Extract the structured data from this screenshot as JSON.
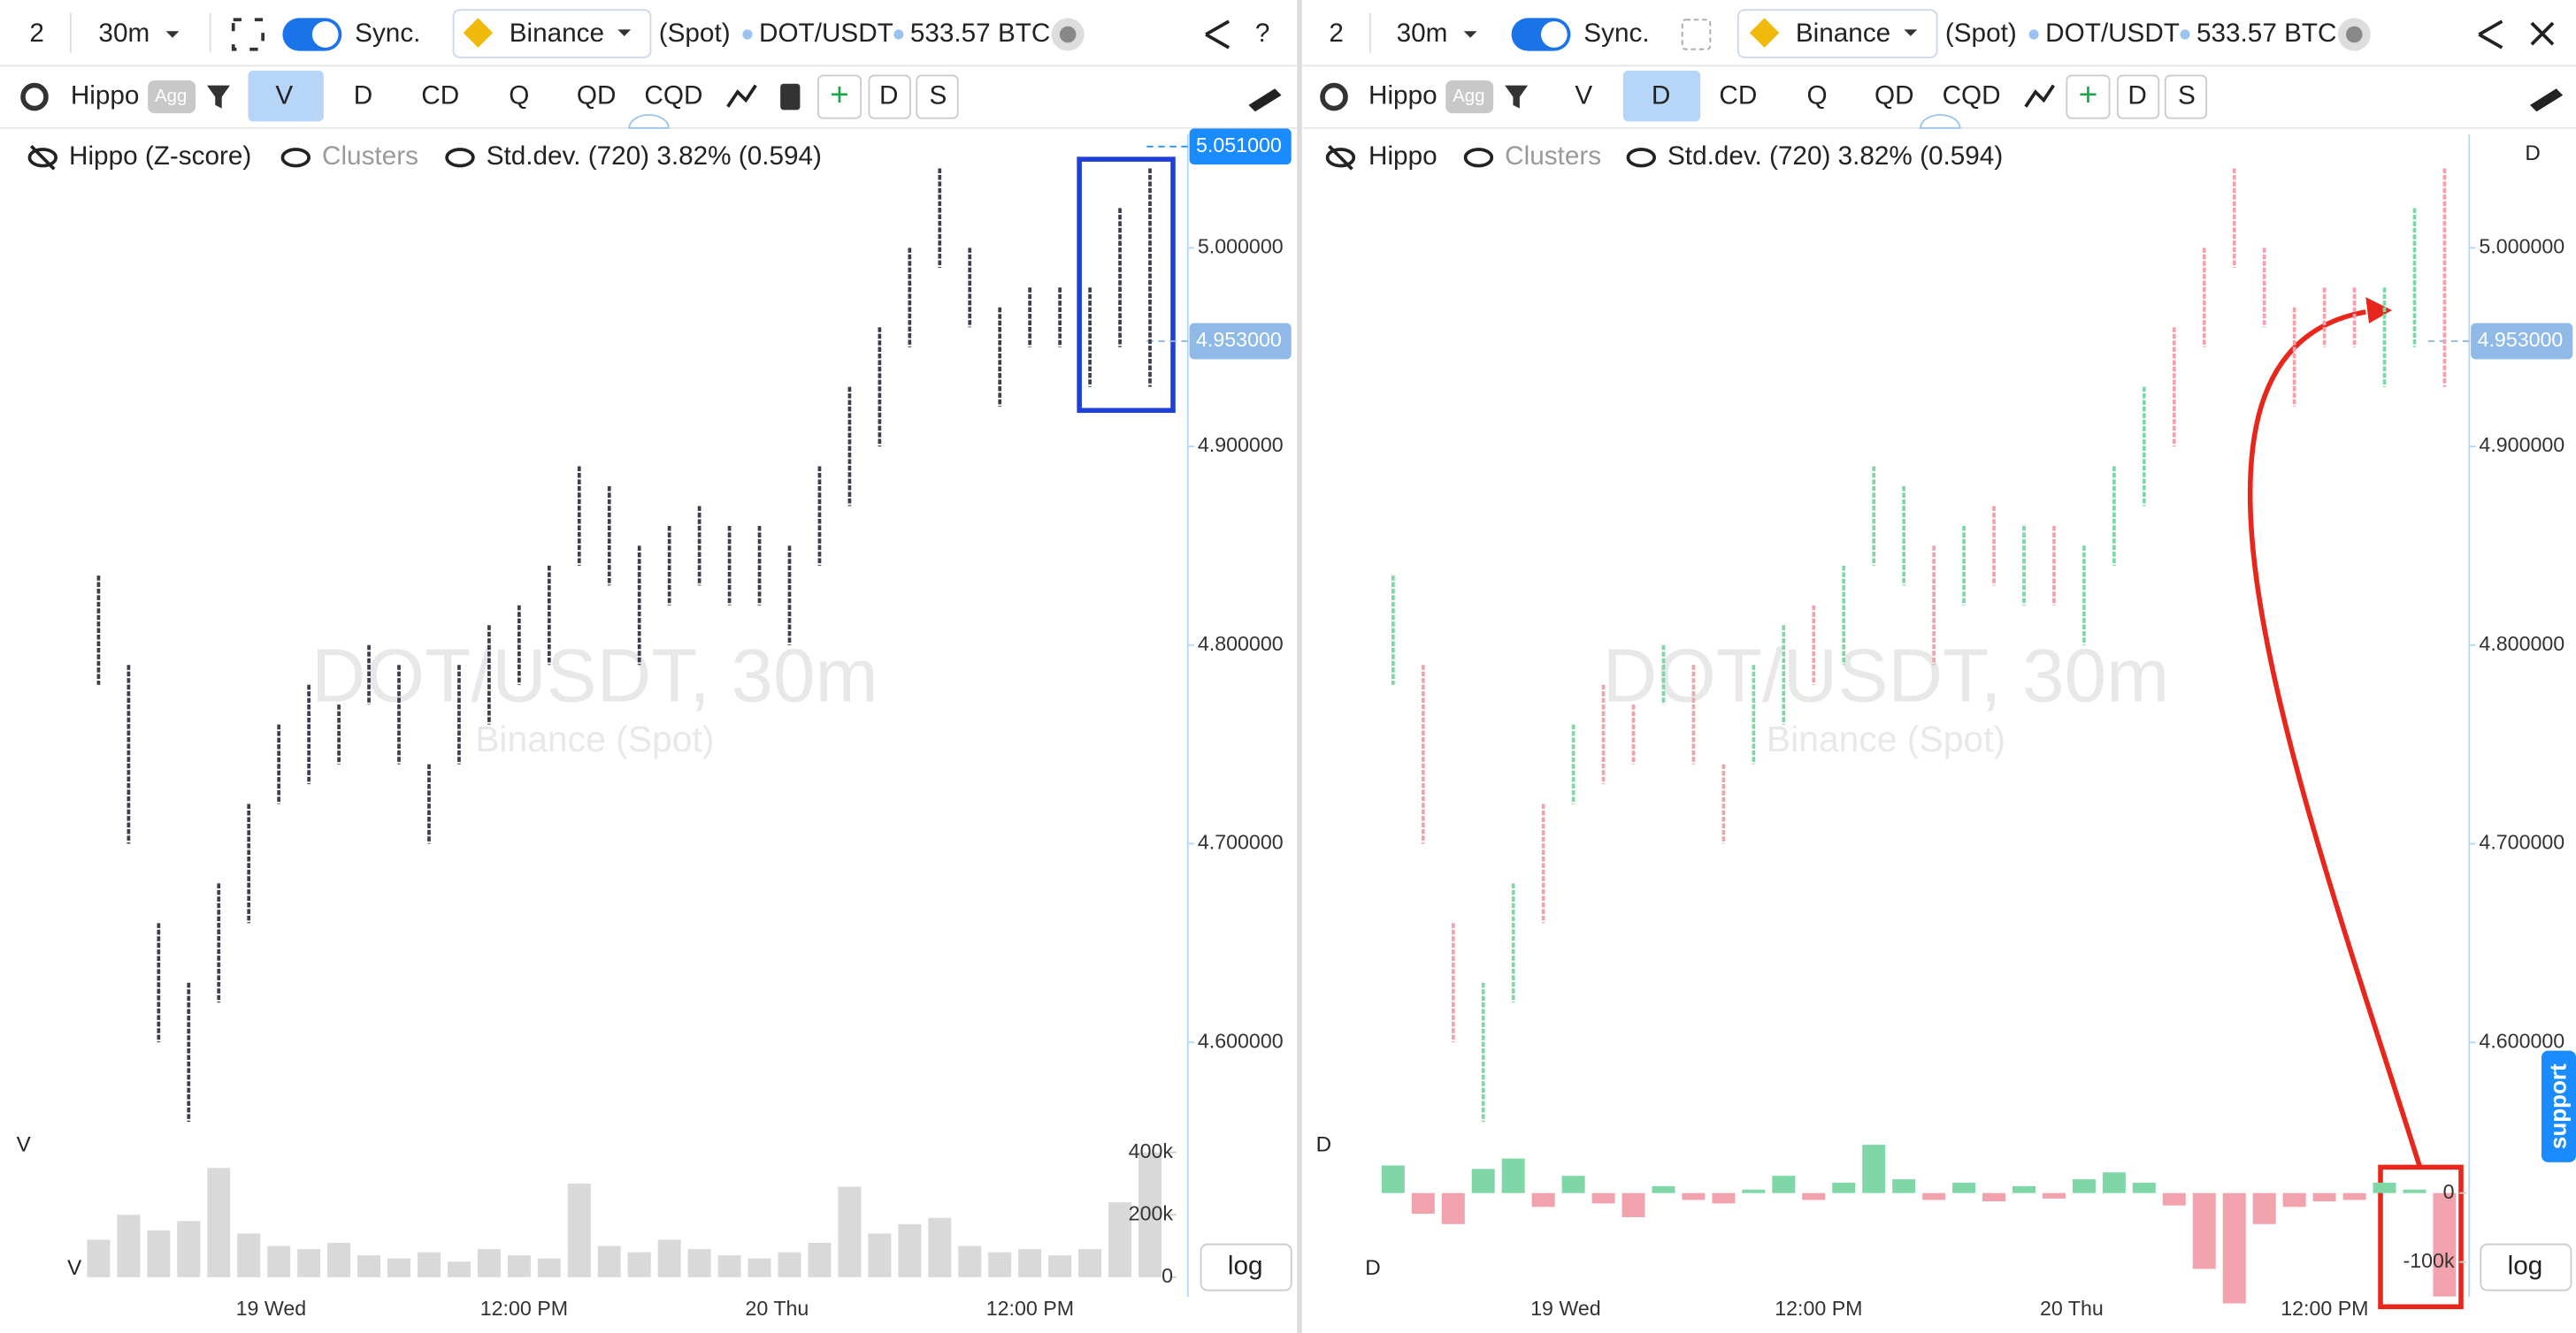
{
  "left_panel": {
    "toolbar": {
      "layout": "2",
      "interval": "30m",
      "sync": "Sync.",
      "exchange": "Binance",
      "market": "(Spot)",
      "pair": "DOT/USDT",
      "volume": "533.57 BTC",
      "help": "?"
    },
    "indicators": {
      "name": "Hippo",
      "agg": "Agg",
      "tabs": [
        "V",
        "D",
        "CD",
        "Q",
        "QD",
        "CQD"
      ],
      "add": "+",
      "d": "D",
      "s": "S"
    },
    "legend": {
      "hippo": "Hippo (Z-score)",
      "clusters": "Clusters",
      "stddev": "Std.dev. (720) 3.82% (0.594)"
    },
    "watermark": {
      "symbol": "DOT/USDT, 30m",
      "source": "Binance (Spot)"
    },
    "pane_labels": [
      "V",
      "V"
    ],
    "log": "log"
  },
  "right_panel": {
    "toolbar": {
      "layout": "2",
      "interval": "30m",
      "sync": "Sync.",
      "exchange": "Binance",
      "market": "(Spot)",
      "pair": "DOT/USDT",
      "volume": "533.57 BTC"
    },
    "indicators": {
      "name": "Hippo",
      "agg": "Agg",
      "tabs": [
        "V",
        "D",
        "CD",
        "Q",
        "QD",
        "CQD"
      ],
      "add": "+",
      "d": "D",
      "s": "S"
    },
    "legend": {
      "hippo": "Hippo",
      "clusters": "Clusters",
      "stddev": "Std.dev. (720) 3.82% (0.594)"
    },
    "watermark": {
      "symbol": "DOT/USDT, 30m",
      "source": "Binance (Spot)"
    },
    "pane_labels": [
      "D",
      "D",
      "D"
    ],
    "log": "log",
    "support": "support"
  },
  "chart_data": [
    {
      "type": "candlestick",
      "color": "#3a3f4b",
      "high": [
        4.835,
        4.79,
        4.66,
        4.63,
        4.68,
        4.72,
        4.76,
        4.78,
        4.77,
        4.8,
        4.79,
        4.74,
        4.79,
        4.81,
        4.82,
        4.84,
        4.89,
        4.88,
        4.85,
        4.86,
        4.87,
        4.86,
        4.86,
        4.85,
        4.89,
        4.93,
        4.96,
        5.0,
        5.04,
        5.0,
        4.97,
        4.98,
        4.98,
        4.98,
        5.02,
        5.04
      ],
      "low": [
        4.78,
        4.7,
        4.6,
        4.56,
        4.62,
        4.66,
        4.72,
        4.73,
        4.74,
        4.77,
        4.74,
        4.7,
        4.74,
        4.76,
        4.78,
        4.79,
        4.84,
        4.83,
        4.79,
        4.82,
        4.83,
        4.82,
        4.82,
        4.8,
        4.84,
        4.87,
        4.9,
        4.95,
        4.99,
        4.96,
        4.92,
        4.95,
        4.95,
        4.93,
        4.95,
        4.93
      ],
      "ylim": [
        4.5545,
        5.0603
      ],
      "yticks": [
        {
          "value": 4.6,
          "label": "4.600000"
        },
        {
          "value": 4.7,
          "label": "4.700000"
        },
        {
          "value": 4.8,
          "label": "4.800000"
        },
        {
          "value": 4.9,
          "label": "4.900000"
        },
        {
          "value": 5.0,
          "label": "5.000000"
        }
      ],
      "last_price": {
        "value": 5.051,
        "label": "5.051000"
      },
      "cursor_price": {
        "value": 4.953,
        "label": "4.953000"
      },
      "xtick_labels": [
        "19 Wed",
        "12:00 PM",
        "20 Thu",
        "12:00 PM"
      ],
      "volume": {
        "color": "#d9d9d9",
        "values": [
          120000,
          200000,
          150000,
          180000,
          350000,
          140000,
          100000,
          90000,
          110000,
          70000,
          60000,
          80000,
          50000,
          90000,
          70000,
          60000,
          300000,
          100000,
          80000,
          120000,
          90000,
          70000,
          60000,
          80000,
          110000,
          290000,
          140000,
          170000,
          190000,
          100000,
          80000,
          90000,
          70000,
          90000,
          240000,
          400000
        ],
        "ylim": [
          0,
          463000
        ],
        "yticks": [
          0,
          {
            "value": 200000,
            "label": "200k"
          },
          {
            "value": 400000,
            "label": "400k"
          }
        ]
      }
    },
    {
      "type": "candlestick",
      "up_color": "#7fd6a6",
      "down_color": "#f2a2ad",
      "high": [
        4.835,
        4.79,
        4.66,
        4.63,
        4.68,
        4.72,
        4.76,
        4.78,
        4.77,
        4.8,
        4.79,
        4.74,
        4.79,
        4.81,
        4.82,
        4.84,
        4.89,
        4.88,
        4.85,
        4.86,
        4.87,
        4.86,
        4.86,
        4.85,
        4.89,
        4.93,
        4.96,
        5.0,
        5.04,
        5.0,
        4.97,
        4.98,
        4.98,
        4.98,
        5.02,
        5.04
      ],
      "low": [
        4.78,
        4.7,
        4.6,
        4.56,
        4.62,
        4.66,
        4.72,
        4.73,
        4.74,
        4.77,
        4.74,
        4.7,
        4.74,
        4.76,
        4.78,
        4.79,
        4.84,
        4.83,
        4.79,
        4.82,
        4.83,
        4.82,
        4.82,
        4.8,
        4.84,
        4.87,
        4.9,
        4.95,
        4.99,
        4.96,
        4.92,
        4.95,
        4.95,
        4.93,
        4.95,
        4.93
      ],
      "ylim": [
        4.5545,
        5.0603
      ],
      "yticks": [
        {
          "value": 4.6,
          "label": "4.600000"
        },
        {
          "value": 4.7,
          "label": "4.700000"
        },
        {
          "value": 4.8,
          "label": "4.800000"
        },
        {
          "value": 4.9,
          "label": "4.900000"
        },
        {
          "value": 5.0,
          "label": "5.000000"
        }
      ],
      "cursor_price": {
        "value": 4.953,
        "label": "4.953000"
      },
      "xtick_labels": [
        "19 Wed",
        "12:00 PM",
        "20 Thu",
        "12:00 PM"
      ],
      "delta": {
        "values": [
          40000,
          -30000,
          -45000,
          35000,
          50000,
          -20000,
          25000,
          -15000,
          -35000,
          10000,
          -10000,
          -15000,
          5000,
          25000,
          -10000,
          15000,
          70000,
          20000,
          -10000,
          15000,
          -12000,
          10000,
          -8000,
          20000,
          30000,
          15000,
          -18000,
          -110000,
          -160000,
          -45000,
          -20000,
          -12000,
          -10000,
          15000,
          5000,
          -150000
        ],
        "ylim": [
          -162500,
          87500
        ],
        "yticks": [
          0,
          {
            "value": -100000,
            "label": "-100k"
          }
        ]
      }
    }
  ]
}
